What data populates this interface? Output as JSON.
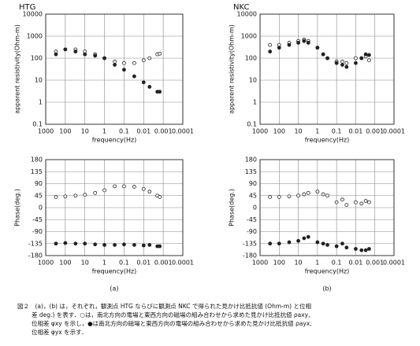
{
  "chart_data": [
    {
      "type": "scatter",
      "title": "HTG",
      "xlabel": "frequency(Hz)",
      "ylabel": "apparent resistivity(Ohm-m)",
      "x_log": true,
      "y_log": true,
      "grid": true,
      "xlim": [
        1000,
        0.0001
      ],
      "xticks": [
        1000,
        100,
        10,
        1,
        0.1,
        0.01,
        0.001,
        0.0001
      ],
      "ylim": [
        0.1,
        10000
      ],
      "yticks": [
        0.1,
        1,
        10,
        100,
        1000,
        10000
      ],
      "x": [
        300,
        100,
        30,
        10,
        3,
        1,
        0.3,
        0.1,
        0.03,
        0.01,
        0.005,
        0.002,
        0.0015
      ],
      "series": [
        {
          "marker": "open",
          "color": "#222",
          "values": [
            200,
            250,
            250,
            200,
            150,
            100,
            70,
            60,
            60,
            80,
            100,
            150,
            160
          ]
        },
        {
          "marker": "filled",
          "color": "#222",
          "values": [
            150,
            250,
            200,
            150,
            130,
            100,
            50,
            30,
            15,
            8,
            5,
            3,
            3
          ]
        }
      ]
    },
    {
      "type": "scatter",
      "title": "NKC",
      "xlabel": "frequency(Hz)",
      "ylabel": "apparent resistivity(Ohm-m)",
      "x_log": true,
      "y_log": true,
      "grid": true,
      "xlim": [
        1000,
        0.0001
      ],
      "xticks": [
        1000,
        100,
        10,
        1,
        0.1,
        0.01,
        0.001,
        0.0001
      ],
      "ylim": [
        0.1,
        10000
      ],
      "yticks": [
        0.1,
        1,
        10,
        100,
        1000,
        10000
      ],
      "x": [
        300,
        100,
        30,
        10,
        5,
        3,
        1,
        0.5,
        0.3,
        0.1,
        0.05,
        0.03,
        0.01,
        0.005,
        0.003,
        0.002
      ],
      "series": [
        {
          "marker": "open",
          "color": "#222",
          "values": [
            400,
            400,
            500,
            600,
            700,
            600,
            300,
            150,
            100,
            70,
            70,
            60,
            100,
            100,
            120,
            80
          ]
        },
        {
          "marker": "filled",
          "color": "#222",
          "values": [
            200,
            300,
            400,
            500,
            600,
            500,
            300,
            150,
            100,
            60,
            50,
            40,
            60,
            100,
            150,
            140
          ]
        }
      ]
    },
    {
      "type": "scatter",
      "panel_label": "(a)",
      "xlabel": "frequency(Hz)",
      "ylabel": "Phase(deg.)",
      "x_log": true,
      "y_log": false,
      "grid": true,
      "xlim": [
        1000,
        0.0001
      ],
      "xticks": [
        1000,
        100,
        10,
        1,
        0.1,
        0.01,
        0.001,
        0.0001
      ],
      "ylim": [
        -180,
        180
      ],
      "yticks": [
        180,
        135,
        90,
        45,
        0,
        -45,
        -90,
        -135,
        -180
      ],
      "x": [
        300,
        100,
        30,
        10,
        3,
        1,
        0.3,
        0.1,
        0.03,
        0.01,
        0.005,
        0.002,
        0.0015
      ],
      "series": [
        {
          "marker": "open",
          "color": "#222",
          "values": [
            40,
            42,
            45,
            48,
            55,
            65,
            80,
            80,
            78,
            70,
            60,
            45,
            40
          ]
        },
        {
          "marker": "filled",
          "color": "#222",
          "values": [
            -135,
            -133,
            -135,
            -135,
            -138,
            -140,
            -140,
            -138,
            -140,
            -142,
            -140,
            -145,
            -145
          ]
        }
      ]
    },
    {
      "type": "scatter",
      "panel_label": "(b)",
      "xlabel": "frequency(Hz)",
      "ylabel": "Phase(deg.)",
      "x_log": true,
      "y_log": false,
      "grid": true,
      "xlim": [
        1000,
        0.0001
      ],
      "xticks": [
        1000,
        100,
        10,
        1,
        0.1,
        0.01,
        0.001,
        0.0001
      ],
      "ylim": [
        -180,
        180
      ],
      "yticks": [
        180,
        135,
        90,
        45,
        0,
        -45,
        -90,
        -135,
        -180
      ],
      "x": [
        300,
        100,
        30,
        10,
        5,
        3,
        1,
        0.5,
        0.3,
        0.1,
        0.05,
        0.03,
        0.01,
        0.005,
        0.003,
        0.002
      ],
      "series": [
        {
          "marker": "open",
          "color": "#222",
          "values": [
            40,
            40,
            42,
            45,
            50,
            55,
            60,
            50,
            45,
            20,
            30,
            10,
            20,
            15,
            25,
            20
          ]
        },
        {
          "marker": "filled",
          "color": "#222",
          "values": [
            -135,
            -135,
            -130,
            -125,
            -115,
            -110,
            -130,
            -135,
            -140,
            -145,
            -135,
            -150,
            -155,
            -160,
            -160,
            -155
          ]
        }
      ]
    }
  ],
  "caption": [
    "図２　(a)，(b) は，それぞれ，観測点 HTG ならびに観測点 NKC で得られた見かけ比抵抗値 (Ohm-m) と位相",
    "差 deg.) を表す．○は，南北方向の電場と東西方向の磁場の組み合わせから求めた見かけ比抵抗値 ρaxy,",
    "位相差 φxy を示し，●は南北方向の磁場と東西方向の電場の組み合わせから求めた見かけ比抵抗値 ρayx,",
    "位相差 φyx を示す．"
  ]
}
